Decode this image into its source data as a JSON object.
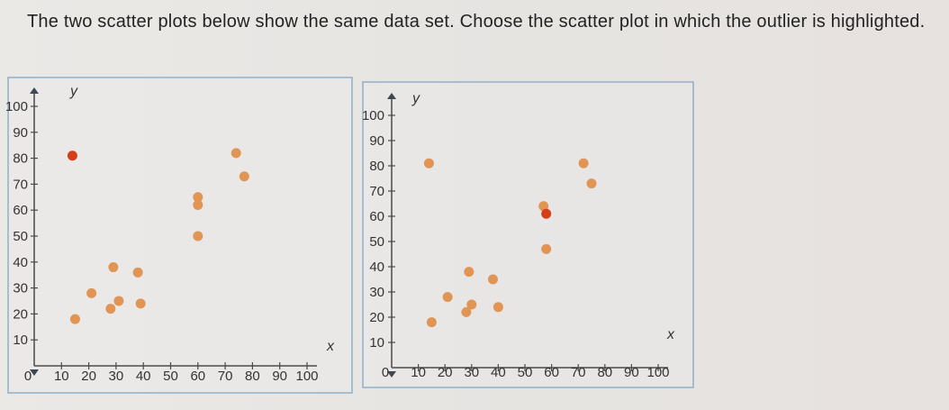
{
  "question": {
    "text": "The two scatter plots below show the same data set. Choose the scatter plot in which the outlier is highlighted."
  },
  "colors": {
    "point": "#e09555",
    "highlight": "#d43f1a",
    "axis": "#4a4a4a",
    "card_border": "#8fb0c6"
  },
  "chart_data": [
    {
      "type": "scatter",
      "title": "",
      "xlabel": "x",
      "ylabel": "y",
      "xlim": [
        0,
        100
      ],
      "ylim": [
        0,
        100
      ],
      "x_ticks": [
        0,
        10,
        20,
        30,
        40,
        50,
        60,
        70,
        80,
        90,
        100
      ],
      "y_ticks": [
        10,
        20,
        30,
        40,
        50,
        60,
        70,
        80,
        90,
        100
      ],
      "grid": false,
      "points": [
        {
          "x": 14,
          "y": 81,
          "highlighted": true
        },
        {
          "x": 15,
          "y": 18,
          "highlighted": false
        },
        {
          "x": 21,
          "y": 28,
          "highlighted": false
        },
        {
          "x": 29,
          "y": 38,
          "highlighted": false
        },
        {
          "x": 28,
          "y": 22,
          "highlighted": false
        },
        {
          "x": 31,
          "y": 25,
          "highlighted": false
        },
        {
          "x": 38,
          "y": 36,
          "highlighted": false
        },
        {
          "x": 39,
          "y": 24,
          "highlighted": false
        },
        {
          "x": 60,
          "y": 50,
          "highlighted": false
        },
        {
          "x": 60,
          "y": 65,
          "highlighted": false
        },
        {
          "x": 60,
          "y": 62,
          "highlighted": false
        },
        {
          "x": 74,
          "y": 82,
          "highlighted": false
        },
        {
          "x": 77,
          "y": 73,
          "highlighted": false
        }
      ]
    },
    {
      "type": "scatter",
      "title": "",
      "xlabel": "x",
      "ylabel": "y",
      "xlim": [
        0,
        100
      ],
      "ylim": [
        0,
        100
      ],
      "x_ticks": [
        0,
        10,
        20,
        30,
        40,
        50,
        60,
        70,
        80,
        90,
        100
      ],
      "y_ticks": [
        10,
        20,
        30,
        40,
        50,
        60,
        70,
        80,
        90,
        100
      ],
      "grid": false,
      "points": [
        {
          "x": 14,
          "y": 81,
          "highlighted": false
        },
        {
          "x": 15,
          "y": 18,
          "highlighted": false
        },
        {
          "x": 21,
          "y": 28,
          "highlighted": false
        },
        {
          "x": 29,
          "y": 38,
          "highlighted": false
        },
        {
          "x": 28,
          "y": 22,
          "highlighted": false
        },
        {
          "x": 30,
          "y": 25,
          "highlighted": false
        },
        {
          "x": 38,
          "y": 35,
          "highlighted": false
        },
        {
          "x": 40,
          "y": 24,
          "highlighted": false
        },
        {
          "x": 57,
          "y": 64,
          "highlighted": false
        },
        {
          "x": 58,
          "y": 61,
          "highlighted": true
        },
        {
          "x": 58,
          "y": 47,
          "highlighted": false
        },
        {
          "x": 72,
          "y": 81,
          "highlighted": false
        },
        {
          "x": 75,
          "y": 73,
          "highlighted": false
        }
      ]
    }
  ]
}
